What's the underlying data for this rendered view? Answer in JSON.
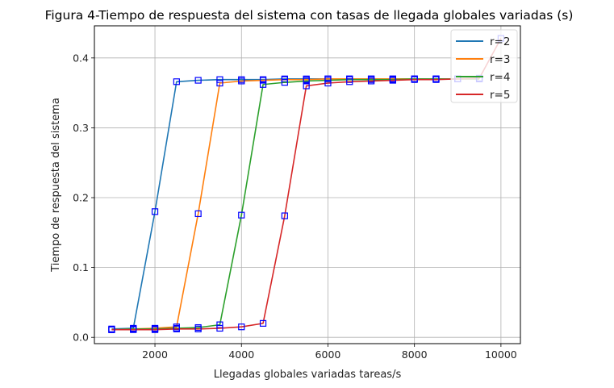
{
  "chart_data": {
    "type": "line",
    "title": "Figura 4-Tiempo de respuesta del sistema con tasas de llegada globales variadas (s)",
    "xlabel": "Llegadas globales variadas tareas/s",
    "ylabel": "Tiempo de respuesta del sistema",
    "xlim": [
      600,
      10450
    ],
    "ylim": [
      -0.009,
      0.446
    ],
    "xticks": [
      2000,
      4000,
      6000,
      8000,
      10000
    ],
    "xtick_labels": [
      "2000",
      "4000",
      "6000",
      "8000",
      "10000"
    ],
    "yticks": [
      0.0,
      0.1,
      0.2,
      0.3,
      0.4
    ],
    "ytick_labels": [
      "0.0",
      "0.1",
      "0.2",
      "0.3",
      "0.4"
    ],
    "grid": true,
    "legend_position": "upper right",
    "marker": {
      "shape": "square",
      "color": "#0000ff",
      "filled": false
    },
    "x": [
      1000,
      1500,
      2000,
      2500,
      3000,
      3500,
      4000,
      4500,
      5000,
      5500,
      6000,
      6500,
      7000,
      7500,
      8000,
      8500,
      9000,
      9500,
      10000
    ],
    "series": [
      {
        "name": "r=2",
        "color": "#1f77b4",
        "values": [
          0.012,
          0.013,
          0.18,
          0.366,
          0.368,
          0.369,
          0.369,
          0.369,
          0.37,
          0.37,
          0.37,
          0.37,
          0.37,
          0.37,
          0.37,
          0.37,
          0.37,
          0.37,
          null
        ]
      },
      {
        "name": "r=3",
        "color": "#ff7f0e",
        "values": [
          0.011,
          0.012,
          0.013,
          0.015,
          0.177,
          0.364,
          0.367,
          0.368,
          0.369,
          0.369,
          0.37,
          0.37,
          0.37,
          0.37,
          0.37,
          0.37,
          0.37,
          0.37,
          null
        ]
      },
      {
        "name": "r=4",
        "color": "#2ca02c",
        "values": [
          0.011,
          0.012,
          0.012,
          0.013,
          0.014,
          0.018,
          0.175,
          0.362,
          0.365,
          0.367,
          0.368,
          0.369,
          0.369,
          0.369,
          0.37,
          0.37,
          0.37,
          0.37,
          null
        ]
      },
      {
        "name": "r=5",
        "color": "#d62728",
        "values": [
          0.011,
          0.011,
          0.011,
          0.012,
          0.012,
          0.013,
          0.015,
          0.02,
          0.174,
          0.36,
          0.364,
          0.366,
          0.367,
          0.368,
          0.369,
          0.369,
          0.37,
          0.371,
          0.428
        ]
      }
    ]
  }
}
